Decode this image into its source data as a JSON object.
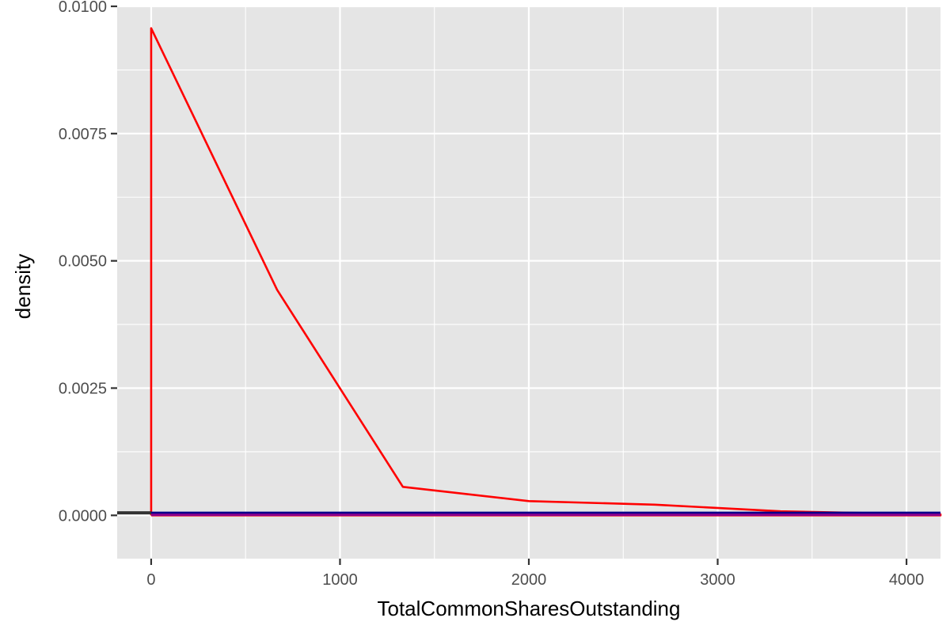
{
  "chart_data": {
    "type": "line",
    "title": "",
    "xlabel": "TotalCommonSharesOutstanding",
    "ylabel": "density",
    "xlim": [
      -180,
      4180
    ],
    "ylim": [
      -0.00085,
      0.01
    ],
    "x_ticks": [
      0,
      1000,
      2000,
      3000,
      4000
    ],
    "x_tick_labels": [
      "0",
      "1000",
      "2000",
      "3000",
      "4000"
    ],
    "x_minor_ticks": [
      500,
      1500,
      2500,
      3500
    ],
    "y_ticks": [
      0,
      0.0025,
      0.005,
      0.0075,
      0.01
    ],
    "y_tick_labels": [
      "0.0000",
      "0.0025",
      "0.0050",
      "0.0075",
      "0.0100"
    ],
    "y_minor_ticks": [
      0.00125,
      0.00375,
      0.00625,
      0.00875
    ],
    "grid": true,
    "panel_background": "#E5E5E5",
    "gridline_color": "#FFFFFF",
    "series": [
      {
        "color": "#FF0000",
        "x": [
          0,
          0,
          667,
          1333,
          2000,
          2667,
          3333,
          4000,
          4180,
          4180,
          0
        ],
        "y": [
          0,
          0.00957,
          0.00443,
          0.00056,
          0.00028,
          0.00021,
          8e-05,
          3e-05,
          2e-05,
          0,
          0
        ]
      },
      {
        "color": "#00008B",
        "x": [
          0,
          4180
        ],
        "y": [
          5e-05,
          5e-05
        ]
      },
      {
        "color": "#333333",
        "x": [
          -180,
          0
        ],
        "y": [
          5e-05,
          5e-05
        ]
      },
      {
        "color": "#8B008B",
        "x": [
          0,
          4180
        ],
        "y": [
          1e-05,
          1e-05
        ]
      }
    ]
  }
}
